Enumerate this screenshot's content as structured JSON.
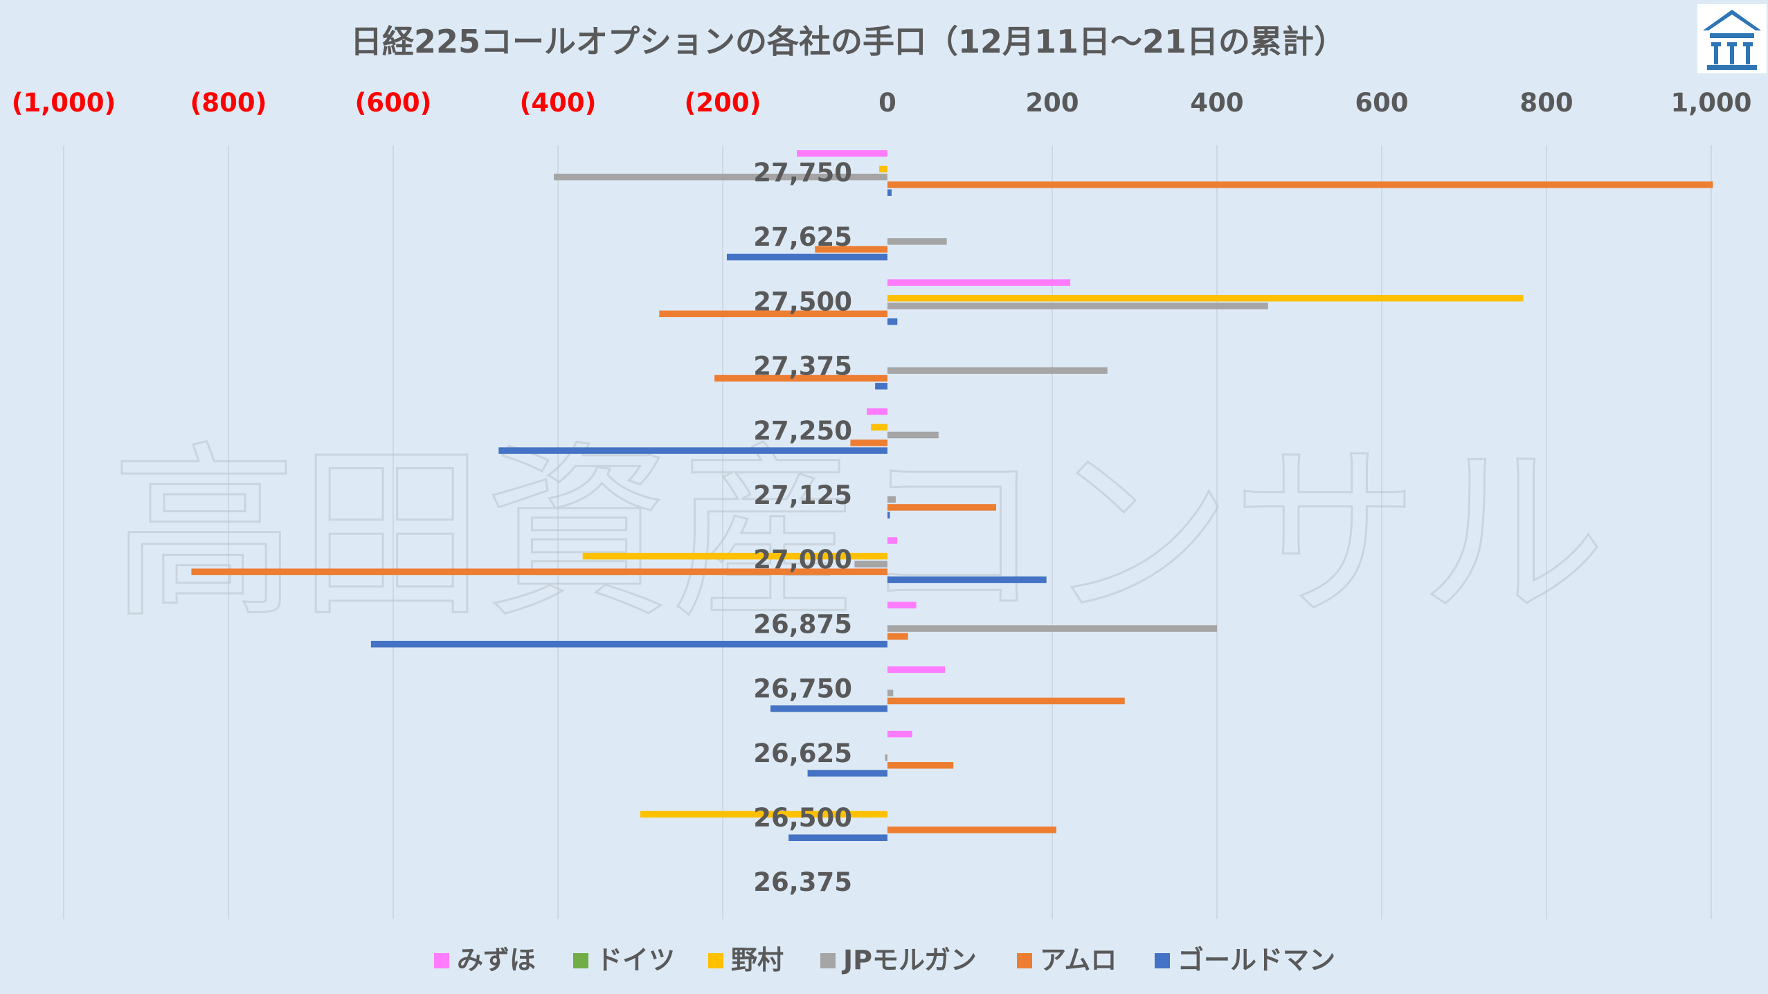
{
  "chart_data": {
    "type": "bar",
    "orientation": "horizontal",
    "title": "日経225コールオプションの各社の手口（12月11日～21日の累計）",
    "categories": [
      "27,750",
      "27,625",
      "27,500",
      "27,375",
      "27,250",
      "27,125",
      "27,000",
      "26,875",
      "26,750",
      "26,625",
      "26,500",
      "26,375"
    ],
    "xlim": [
      -1000,
      1000
    ],
    "x_ticks": [
      {
        "value": -1000,
        "label": "(1,000)"
      },
      {
        "value": -800,
        "label": "(800)"
      },
      {
        "value": -600,
        "label": "(600)"
      },
      {
        "value": -400,
        "label": "(400)"
      },
      {
        "value": -200,
        "label": "(200)"
      },
      {
        "value": 0,
        "label": "0"
      },
      {
        "value": 200,
        "label": "200"
      },
      {
        "value": 400,
        "label": "400"
      },
      {
        "value": 600,
        "label": "600"
      },
      {
        "value": 800,
        "label": "800"
      },
      {
        "value": 1000,
        "label": "1,000"
      }
    ],
    "negative_tick_color": "#ff0000",
    "grid": true,
    "legend_position": "bottom",
    "series": [
      {
        "name": "みずほ",
        "color": "#ff7cff",
        "values": [
          -110,
          0,
          222,
          0,
          -25,
          0,
          12,
          35,
          70,
          30,
          0,
          0
        ]
      },
      {
        "name": "ドイツ",
        "color": "#70ad47",
        "values": [
          0,
          0,
          0,
          0,
          0,
          0,
          0,
          0,
          0,
          0,
          0,
          0
        ]
      },
      {
        "name": "野村",
        "color": "#ffc000",
        "values": [
          -10,
          0,
          772,
          0,
          -20,
          0,
          -370,
          0,
          0,
          0,
          -300,
          0
        ]
      },
      {
        "name": "JPモルガン",
        "color": "#a5a5a5",
        "values": [
          -405,
          72,
          462,
          267,
          62,
          10,
          -40,
          400,
          7,
          -3,
          0,
          0
        ]
      },
      {
        "name": "アムロ",
        "color": "#ed7d31",
        "values": [
          1002,
          -88,
          -277,
          -210,
          -45,
          132,
          -845,
          25,
          288,
          80,
          205,
          0
        ]
      },
      {
        "name": "ゴールドマン",
        "color": "#4472c4",
        "values": [
          5,
          -195,
          12,
          -15,
          -472,
          3,
          193,
          -627,
          -142,
          -97,
          -120,
          0
        ]
      }
    ]
  },
  "watermark": {
    "text": "高田資産コンサル"
  },
  "logo": {
    "name": "building-logo-icon",
    "color": "#2e75b6"
  }
}
